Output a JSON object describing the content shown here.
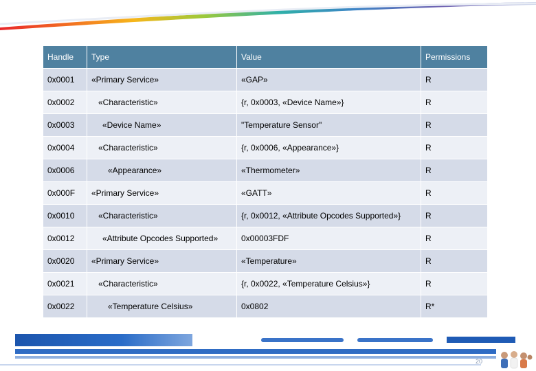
{
  "colors": {
    "header_bg": "#4f81a0",
    "row_odd": "#d5dbe8",
    "row_even": "#edf0f6",
    "banner_blue": "#1f5bb5"
  },
  "table": {
    "headers": [
      "Handle",
      "Type",
      "Value",
      "Permissions"
    ],
    "rows": [
      {
        "handle": "0x0001",
        "type": "«Primary Service»",
        "value": "«GAP»",
        "perm": "R"
      },
      {
        "handle": "0x0002",
        "type": "«Characteristic»",
        "value": "{r, 0x0003, «Device Name»}",
        "perm": "R"
      },
      {
        "handle": "0x0003",
        "type": "«Device Name»",
        "value": "\"Temperature Sensor\"",
        "perm": "R"
      },
      {
        "handle": "0x0004",
        "type": "«Characteristic»",
        "value": "{r, 0x0006, «Appearance»}",
        "perm": "R"
      },
      {
        "handle": "0x0006",
        "type": "«Appearance»",
        "value": "«Thermometer»",
        "perm": "R"
      },
      {
        "handle": "0x000F",
        "type": "«Primary Service»",
        "value": "«GATT»",
        "perm": "R"
      },
      {
        "handle": "0x0010",
        "type": "«Characteristic»",
        "value": "{r, 0x0012, «Attribute Opcodes Supported»}",
        "perm": "R"
      },
      {
        "handle": "0x0012",
        "type": "«Attribute Opcodes Supported»",
        "value": "0x00003FDF",
        "perm": "R"
      },
      {
        "handle": "0x0020",
        "type": "«Primary Service»",
        "value": "«Temperature»",
        "perm": "R"
      },
      {
        "handle": "0x0021",
        "type": "«Characteristic»",
        "value": "{r, 0x0022, «Temperature Celsius»}",
        "perm": "R"
      },
      {
        "handle": "0x0022",
        "type": "«Temperature Celsius»",
        "value": "0x0802",
        "perm": "R*"
      }
    ]
  },
  "footer": {
    "page_number": "20"
  }
}
